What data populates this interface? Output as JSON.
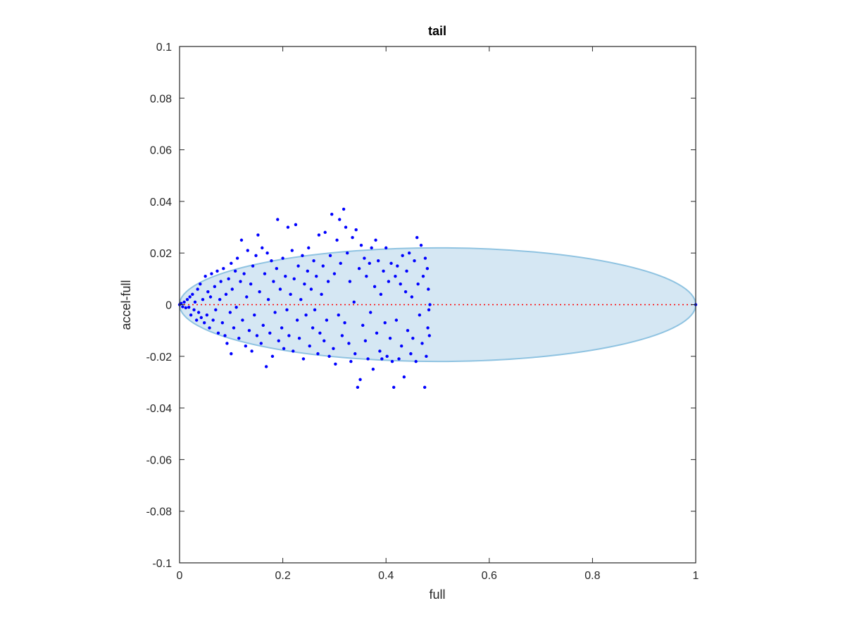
{
  "chart_data": {
    "type": "scatter",
    "title": "tail",
    "xlabel": "full",
    "ylabel": "accel-full",
    "xlim": [
      0,
      1
    ],
    "ylim": [
      -0.1,
      0.1
    ],
    "xticks": [
      "0",
      "0.2",
      "0.4",
      "0.6",
      "0.8",
      "1"
    ],
    "xtick_values": [
      0,
      0.2,
      0.4,
      0.6,
      0.8,
      1
    ],
    "yticks": [
      "-0.1",
      "-0.08",
      "-0.06",
      "-0.04",
      "-0.02",
      "0",
      "0.02",
      "0.04",
      "0.06",
      "0.08",
      "0.1"
    ],
    "ytick_values": [
      -0.1,
      -0.08,
      -0.06,
      -0.04,
      -0.02,
      0,
      0.02,
      0.04,
      0.06,
      0.08,
      0.1
    ],
    "grid": false,
    "ellipse": {
      "center_x": 0.5,
      "center_y": 0,
      "semi_x": 0.5,
      "semi_y": 0.022,
      "fill": "#d5e7f3",
      "stroke": "#8fc3e1"
    },
    "reference_line": {
      "x": [
        0,
        1
      ],
      "y": [
        0,
        0
      ],
      "color": "#ff0000",
      "style": "dotted"
    },
    "points_color": "#0000ff",
    "points": [
      [
        0.0,
        0.0
      ],
      [
        0.003,
        0.0005
      ],
      [
        0.006,
        -0.0008
      ],
      [
        0.009,
        0.001
      ],
      [
        0.012,
        -0.0012
      ],
      [
        0.015,
        0.002
      ],
      [
        0.018,
        -0.001
      ],
      [
        0.02,
        0.003
      ],
      [
        0.022,
        -0.004
      ],
      [
        0.025,
        0.004
      ],
      [
        0.028,
        -0.002
      ],
      [
        0.03,
        0.001
      ],
      [
        0.033,
        -0.006
      ],
      [
        0.035,
        0.006
      ],
      [
        0.037,
        -0.003
      ],
      [
        0.04,
        0.008
      ],
      [
        0.042,
        -0.005
      ],
      [
        0.045,
        0.002
      ],
      [
        0.048,
        -0.007
      ],
      [
        0.05,
        0.011
      ],
      [
        0.053,
        -0.004
      ],
      [
        0.055,
        0.005
      ],
      [
        0.058,
        -0.009
      ],
      [
        0.06,
        0.003
      ],
      [
        0.062,
        0.012
      ],
      [
        0.065,
        -0.006
      ],
      [
        0.068,
        0.007
      ],
      [
        0.07,
        -0.002
      ],
      [
        0.073,
        0.013
      ],
      [
        0.075,
        -0.011
      ],
      [
        0.078,
        0.002
      ],
      [
        0.08,
        0.009
      ],
      [
        0.083,
        -0.007
      ],
      [
        0.085,
        0.014
      ],
      [
        0.088,
        -0.012
      ],
      [
        0.09,
        0.004
      ],
      [
        0.092,
        -0.015
      ],
      [
        0.095,
        0.01
      ],
      [
        0.098,
        -0.003
      ],
      [
        0.1,
        0.016
      ],
      [
        0.1,
        -0.019
      ],
      [
        0.102,
        0.006
      ],
      [
        0.105,
        -0.009
      ],
      [
        0.108,
        0.013
      ],
      [
        0.11,
        -0.001
      ],
      [
        0.112,
        0.018
      ],
      [
        0.115,
        -0.013
      ],
      [
        0.118,
        0.009
      ],
      [
        0.12,
        0.025
      ],
      [
        0.122,
        -0.006
      ],
      [
        0.125,
        0.012
      ],
      [
        0.128,
        -0.016
      ],
      [
        0.13,
        0.003
      ],
      [
        0.132,
        0.021
      ],
      [
        0.135,
        -0.01
      ],
      [
        0.138,
        0.008
      ],
      [
        0.14,
        -0.018
      ],
      [
        0.142,
        0.015
      ],
      [
        0.145,
        -0.004
      ],
      [
        0.148,
        0.019
      ],
      [
        0.15,
        -0.012
      ],
      [
        0.152,
        0.027
      ],
      [
        0.155,
        0.005
      ],
      [
        0.158,
        -0.015
      ],
      [
        0.16,
        0.022
      ],
      [
        0.162,
        -0.008
      ],
      [
        0.165,
        0.012
      ],
      [
        0.168,
        -0.024
      ],
      [
        0.17,
        0.02
      ],
      [
        0.172,
        0.002
      ],
      [
        0.175,
        -0.011
      ],
      [
        0.178,
        0.017
      ],
      [
        0.18,
        -0.02
      ],
      [
        0.182,
        0.009
      ],
      [
        0.185,
        -0.003
      ],
      [
        0.188,
        0.014
      ],
      [
        0.19,
        0.033
      ],
      [
        0.192,
        -0.014
      ],
      [
        0.195,
        0.006
      ],
      [
        0.198,
        -0.009
      ],
      [
        0.2,
        0.018
      ],
      [
        0.202,
        -0.017
      ],
      [
        0.205,
        0.011
      ],
      [
        0.208,
        -0.002
      ],
      [
        0.21,
        0.03
      ],
      [
        0.212,
        -0.012
      ],
      [
        0.215,
        0.004
      ],
      [
        0.218,
        0.021
      ],
      [
        0.22,
        -0.018
      ],
      [
        0.222,
        0.01
      ],
      [
        0.225,
        0.031
      ],
      [
        0.228,
        -0.006
      ],
      [
        0.23,
        0.015
      ],
      [
        0.232,
        -0.013
      ],
      [
        0.235,
        0.002
      ],
      [
        0.238,
        0.019
      ],
      [
        0.24,
        -0.021
      ],
      [
        0.242,
        0.008
      ],
      [
        0.245,
        -0.004
      ],
      [
        0.248,
        0.013
      ],
      [
        0.25,
        0.022
      ],
      [
        0.252,
        -0.016
      ],
      [
        0.255,
        0.006
      ],
      [
        0.258,
        -0.009
      ],
      [
        0.26,
        0.017
      ],
      [
        0.262,
        -0.002
      ],
      [
        0.265,
        0.011
      ],
      [
        0.268,
        -0.019
      ],
      [
        0.27,
        0.027
      ],
      [
        0.272,
        -0.011
      ],
      [
        0.275,
        0.004
      ],
      [
        0.278,
        0.015
      ],
      [
        0.28,
        -0.014
      ],
      [
        0.282,
        0.028
      ],
      [
        0.285,
        -0.006
      ],
      [
        0.288,
        0.009
      ],
      [
        0.29,
        -0.02
      ],
      [
        0.292,
        0.019
      ],
      [
        0.295,
        0.035
      ],
      [
        0.298,
        -0.017
      ],
      [
        0.3,
        0.012
      ],
      [
        0.302,
        -0.023
      ],
      [
        0.305,
        0.025
      ],
      [
        0.308,
        -0.004
      ],
      [
        0.31,
        0.033
      ],
      [
        0.312,
        0.016
      ],
      [
        0.315,
        -0.012
      ],
      [
        0.318,
        0.037
      ],
      [
        0.32,
        -0.007
      ],
      [
        0.322,
        0.03
      ],
      [
        0.325,
        0.02
      ],
      [
        0.328,
        -0.015
      ],
      [
        0.33,
        0.009
      ],
      [
        0.332,
        -0.022
      ],
      [
        0.335,
        0.026
      ],
      [
        0.338,
        0.001
      ],
      [
        0.34,
        -0.019
      ],
      [
        0.342,
        0.029
      ],
      [
        0.345,
        -0.032
      ],
      [
        0.348,
        0.014
      ],
      [
        0.35,
        -0.029
      ],
      [
        0.352,
        0.023
      ],
      [
        0.355,
        -0.008
      ],
      [
        0.358,
        0.018
      ],
      [
        0.36,
        -0.014
      ],
      [
        0.362,
        0.011
      ],
      [
        0.365,
        -0.021
      ],
      [
        0.368,
        0.016
      ],
      [
        0.37,
        -0.003
      ],
      [
        0.372,
        0.022
      ],
      [
        0.375,
        -0.025
      ],
      [
        0.378,
        0.007
      ],
      [
        0.38,
        0.025
      ],
      [
        0.382,
        -0.011
      ],
      [
        0.385,
        0.017
      ],
      [
        0.388,
        -0.018
      ],
      [
        0.39,
        0.004
      ],
      [
        0.392,
        -0.021
      ],
      [
        0.395,
        0.013
      ],
      [
        0.398,
        -0.007
      ],
      [
        0.4,
        0.022
      ],
      [
        0.402,
        -0.02
      ],
      [
        0.405,
        0.009
      ],
      [
        0.408,
        -0.013
      ],
      [
        0.41,
        0.016
      ],
      [
        0.412,
        -0.022
      ],
      [
        0.415,
        -0.032
      ],
      [
        0.418,
        0.011
      ],
      [
        0.42,
        -0.006
      ],
      [
        0.422,
        0.015
      ],
      [
        0.425,
        -0.021
      ],
      [
        0.428,
        0.008
      ],
      [
        0.43,
        -0.016
      ],
      [
        0.432,
        0.019
      ],
      [
        0.435,
        -0.028
      ],
      [
        0.438,
        0.005
      ],
      [
        0.44,
        0.013
      ],
      [
        0.442,
        -0.01
      ],
      [
        0.445,
        0.02
      ],
      [
        0.448,
        -0.019
      ],
      [
        0.45,
        0.003
      ],
      [
        0.452,
        -0.013
      ],
      [
        0.455,
        0.017
      ],
      [
        0.458,
        -0.022
      ],
      [
        0.46,
        0.026
      ],
      [
        0.462,
        0.008
      ],
      [
        0.465,
        -0.004
      ],
      [
        0.468,
        0.023
      ],
      [
        0.47,
        -0.015
      ],
      [
        0.472,
        0.011
      ],
      [
        0.475,
        -0.032
      ],
      [
        0.476,
        0.018
      ],
      [
        0.478,
        -0.02
      ],
      [
        0.48,
        0.014
      ],
      [
        0.481,
        -0.009
      ],
      [
        0.482,
        0.006
      ],
      [
        0.483,
        -0.002
      ],
      [
        0.484,
        -0.012
      ],
      [
        0.485,
        0.0
      ],
      [
        1.0,
        0.0
      ]
    ]
  }
}
